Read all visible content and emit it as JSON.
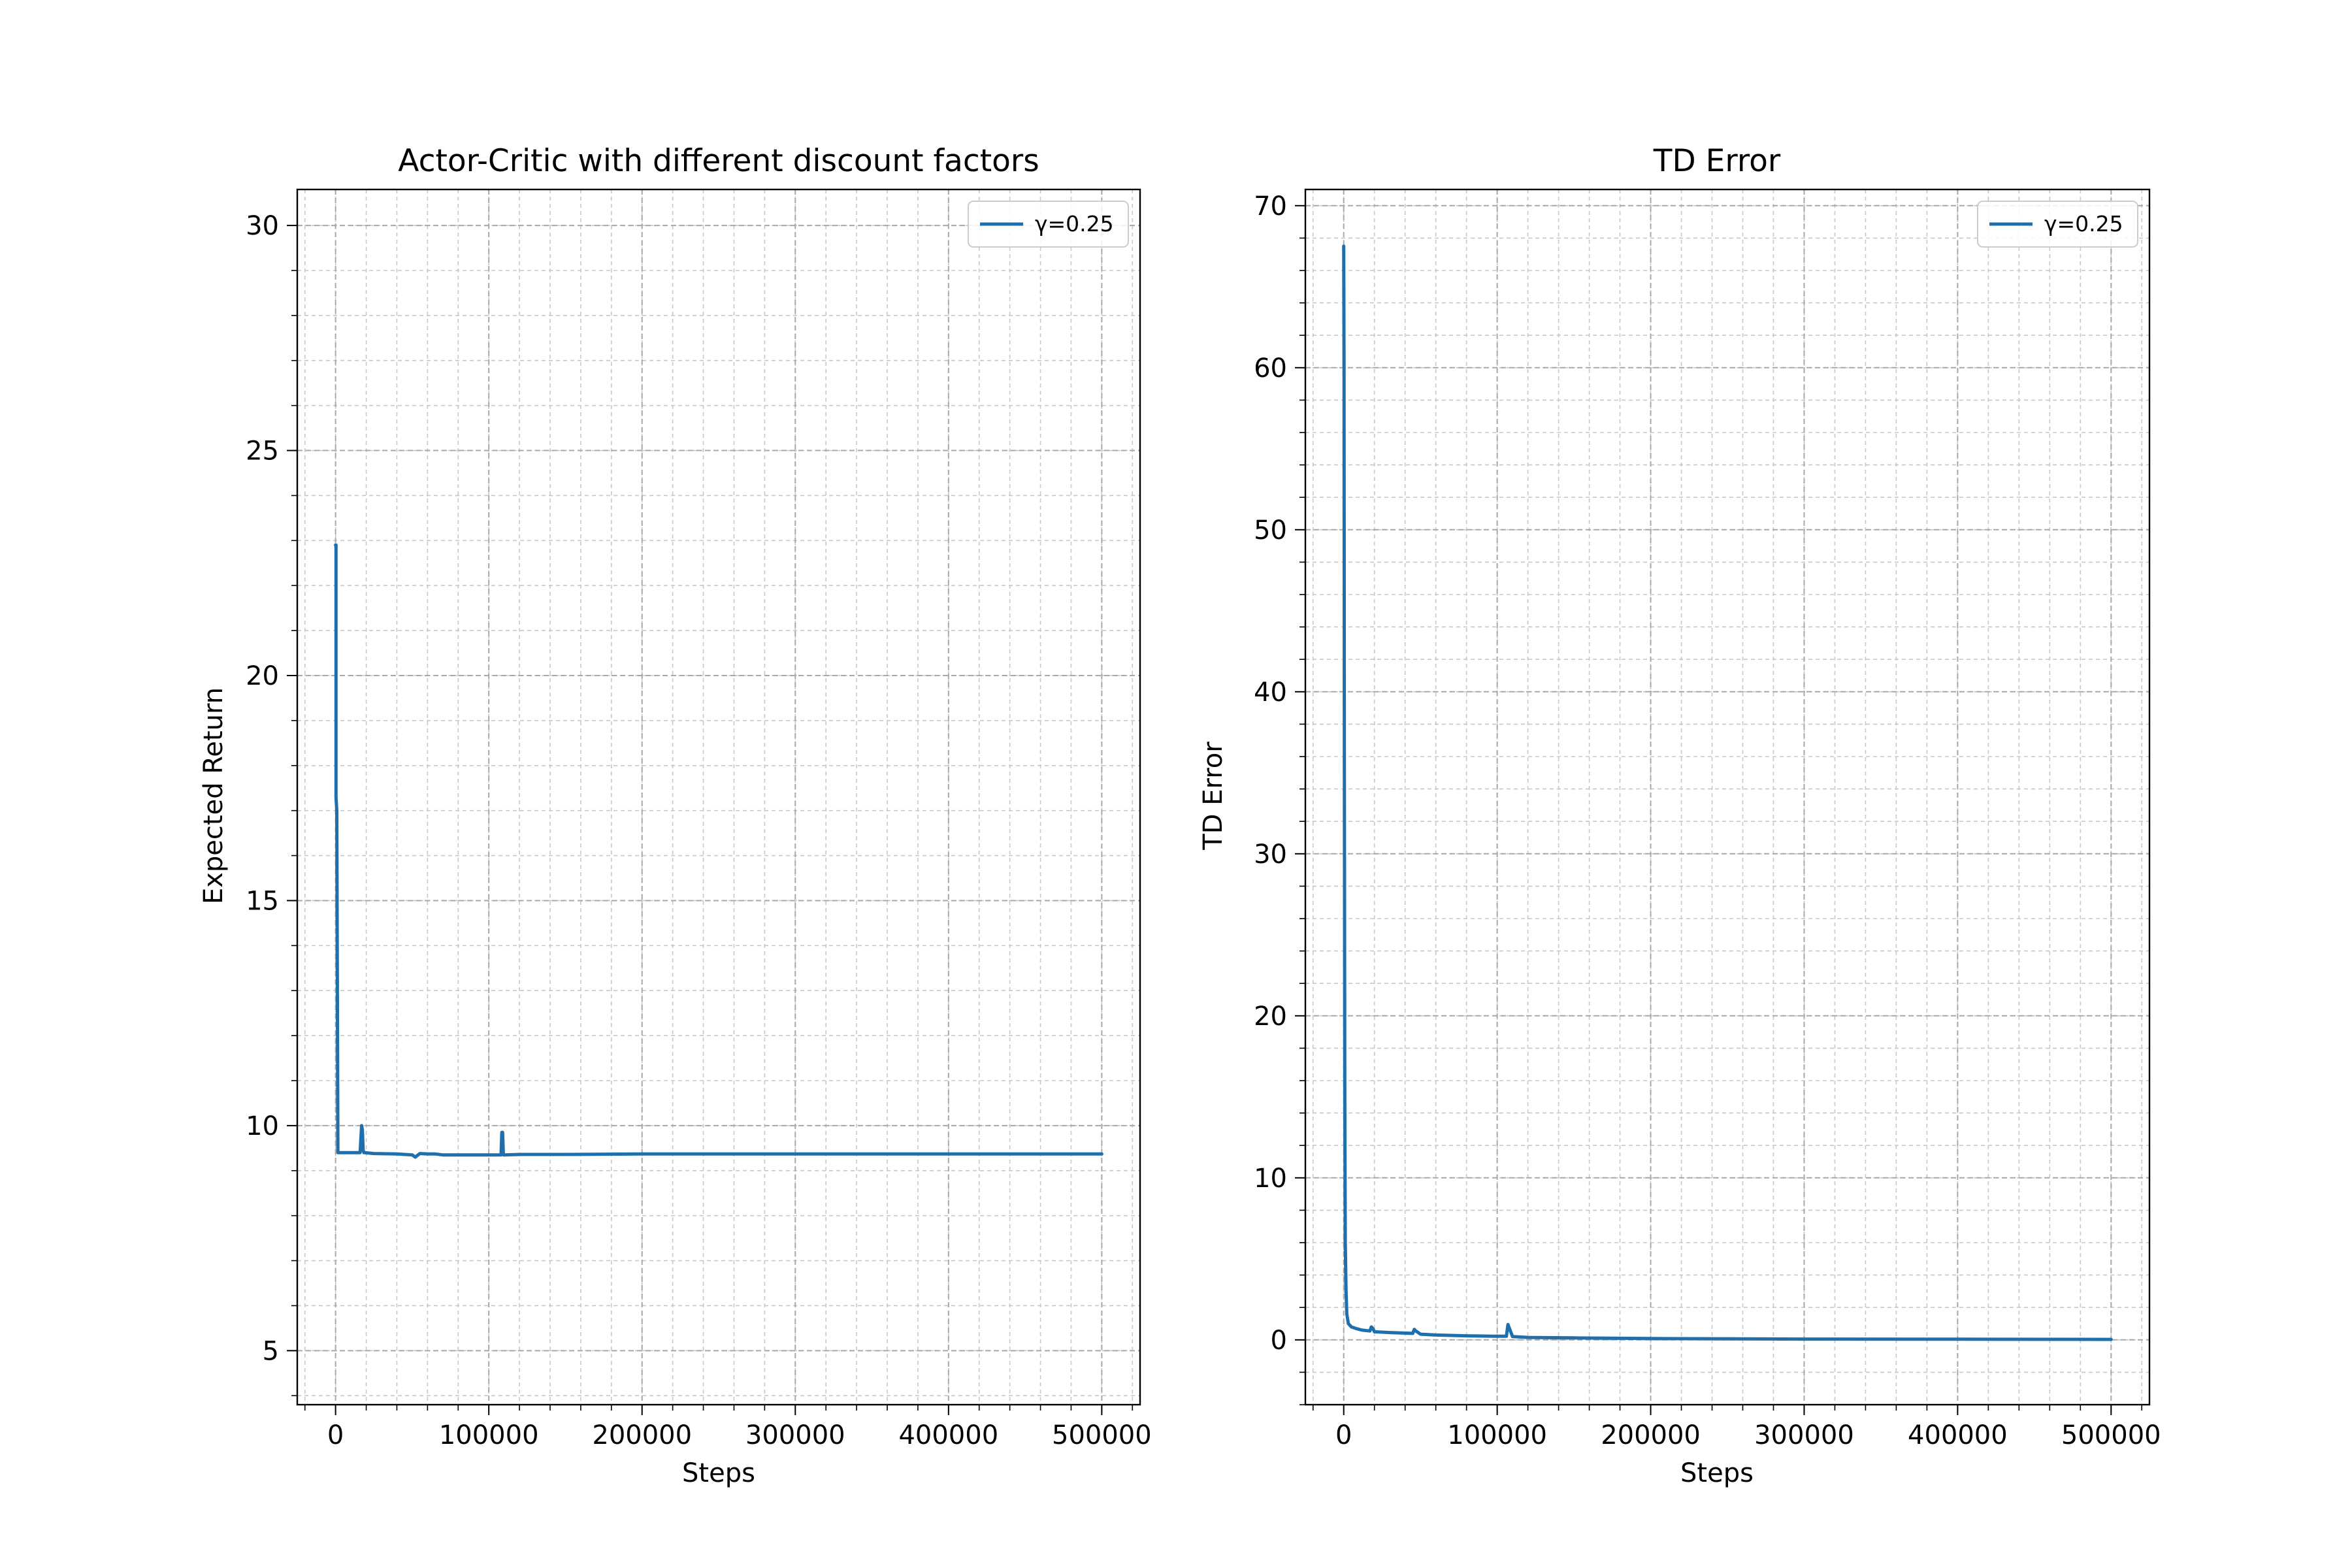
{
  "chart_data": [
    {
      "type": "line",
      "title": "Actor-Critic with different discount factors",
      "xlabel": "Steps",
      "ylabel": "Expected Return",
      "xlim": [
        -25000,
        525000
      ],
      "ylim": [
        3.8,
        30.8
      ],
      "xticks": [
        0,
        100000,
        200000,
        300000,
        400000,
        500000
      ],
      "xtick_labels": [
        "0",
        "100000",
        "200000",
        "300000",
        "400000",
        "500000"
      ],
      "yticks": [
        5,
        10,
        15,
        20,
        25,
        30
      ],
      "ytick_labels": [
        "5",
        "10",
        "15",
        "20",
        "25",
        "30"
      ],
      "x_minor_step": 20000,
      "y_minor_step": 1,
      "grid": true,
      "legend_position": "top-right",
      "color": "#1f6fad",
      "series": [
        {
          "name": "γ=0.25",
          "x": [
            0,
            300,
            300,
            800,
            1500,
            2000,
            16000,
            17000,
            17500,
            18000,
            18500,
            19000,
            25000,
            40000,
            50000,
            52000,
            55000,
            60000,
            65000,
            70000,
            80000,
            100000,
            108000,
            108500,
            109000,
            109500,
            110000,
            120000,
            150000,
            200000,
            300000,
            400000,
            500000
          ],
          "y": [
            22.9,
            22.9,
            17.3,
            17.0,
            9.4,
            9.4,
            9.4,
            10.0,
            9.9,
            9.45,
            9.4,
            9.4,
            9.38,
            9.37,
            9.35,
            9.3,
            9.38,
            9.37,
            9.37,
            9.35,
            9.35,
            9.35,
            9.35,
            9.85,
            9.85,
            9.35,
            9.35,
            9.36,
            9.36,
            9.37,
            9.37,
            9.37,
            9.37
          ]
        }
      ]
    },
    {
      "type": "line",
      "title": "TD Error",
      "xlabel": "Steps",
      "ylabel": "TD Error",
      "xlim": [
        -25000,
        525000
      ],
      "ylim": [
        -4,
        71
      ],
      "xticks": [
        0,
        100000,
        200000,
        300000,
        400000,
        500000
      ],
      "xtick_labels": [
        "0",
        "100000",
        "200000",
        "300000",
        "400000",
        "500000"
      ],
      "yticks": [
        0,
        10,
        20,
        30,
        40,
        50,
        60,
        70
      ],
      "ytick_labels": [
        "0",
        "10",
        "20",
        "30",
        "40",
        "50",
        "60",
        "70"
      ],
      "x_minor_step": 20000,
      "y_minor_step": 2,
      "grid": true,
      "legend_position": "top-right",
      "color": "#1f6fad",
      "series": [
        {
          "name": "γ=0.25",
          "x": [
            0,
            200,
            400,
            700,
            1000,
            1500,
            2000,
            3000,
            5000,
            8000,
            12000,
            17000,
            18000,
            19000,
            20000,
            30000,
            45000,
            46000,
            47000,
            50000,
            60000,
            80000,
            100000,
            106000,
            107000,
            108000,
            110000,
            120000,
            150000,
            200000,
            300000,
            400000,
            500000
          ],
          "y": [
            67.5,
            60,
            35,
            15,
            6,
            3,
            1.6,
            1.0,
            0.8,
            0.7,
            0.6,
            0.55,
            0.8,
            0.7,
            0.5,
            0.45,
            0.4,
            0.65,
            0.55,
            0.35,
            0.3,
            0.25,
            0.22,
            0.22,
            0.95,
            0.7,
            0.2,
            0.15,
            0.12,
            0.08,
            0.05,
            0.04,
            0.03
          ]
        }
      ]
    }
  ]
}
